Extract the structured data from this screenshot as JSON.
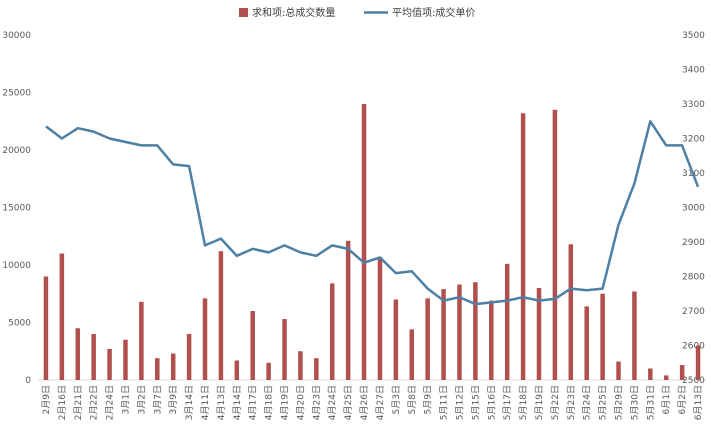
{
  "chart_data": {
    "type": "bar+line",
    "title": "",
    "legend": {
      "placement": "top-center",
      "bar_label": "求和项:总成交数量",
      "line_label": "平均值项:成交单价"
    },
    "colors": {
      "bar": "#b0504e",
      "line": "#4e7fa5",
      "text": "#595959",
      "axis": "#d9d9d9"
    },
    "y_left": {
      "min": 0,
      "max": 30000,
      "ticks": [
        "0",
        "5000",
        "10000",
        "15000",
        "20000",
        "25000",
        "30000"
      ]
    },
    "y_right": {
      "min": 2500,
      "max": 3500,
      "ticks": [
        "2500",
        "2600",
        "2700",
        "2800",
        "2900",
        "3000",
        "3100",
        "3200",
        "3300",
        "3400",
        "3500"
      ]
    },
    "categories": [
      "2月9日",
      "2月16日",
      "2月21日",
      "2月22日",
      "2月24日",
      "3月1日",
      "3月2日",
      "3月7日",
      "3月9日",
      "3月14日",
      "4月11日",
      "4月13日",
      "4月14日",
      "4月17日",
      "4月18日",
      "4月19日",
      "4月20日",
      "4月23日",
      "4月24日",
      "4月25日",
      "4月26日",
      "4月27日",
      "5月3日",
      "5月8日",
      "5月9日",
      "5月11日",
      "5月12日",
      "5月15日",
      "5月16日",
      "5月17日",
      "5月18日",
      "5月19日",
      "5月22日",
      "5月23日",
      "5月24日",
      "5月25日",
      "5月29日",
      "5月30日",
      "5月31日",
      "6月1日",
      "6月2日",
      "6月13日"
    ],
    "series": [
      {
        "name": "求和项:总成交数量",
        "type": "bar",
        "axis": "left",
        "values": [
          9000,
          11000,
          4500,
          4000,
          2700,
          3500,
          6800,
          1900,
          2300,
          4000,
          7100,
          11200,
          1700,
          6000,
          1500,
          5300,
          2500,
          1900,
          8400,
          12100,
          24000,
          10700,
          7000,
          4400,
          7100,
          7900,
          8300,
          8500,
          6900,
          10100,
          23200,
          8000,
          23500,
          11800,
          6400,
          7500,
          1600,
          7700,
          1000,
          400,
          1300,
          3000
        ]
      },
      {
        "name": "平均值项:成交单价",
        "type": "line",
        "axis": "right",
        "values": [
          3235,
          3200,
          3230,
          3220,
          3200,
          3190,
          3180,
          3180,
          3125,
          3120,
          2890,
          2910,
          2860,
          2880,
          2870,
          2890,
          2870,
          2860,
          2890,
          2880,
          2840,
          2855,
          2810,
          2815,
          2765,
          2730,
          2740,
          2720,
          2725,
          2730,
          2740,
          2730,
          2735,
          2765,
          2760,
          2765,
          2950,
          3070,
          3250,
          3180,
          3180,
          3060
        ]
      }
    ]
  }
}
